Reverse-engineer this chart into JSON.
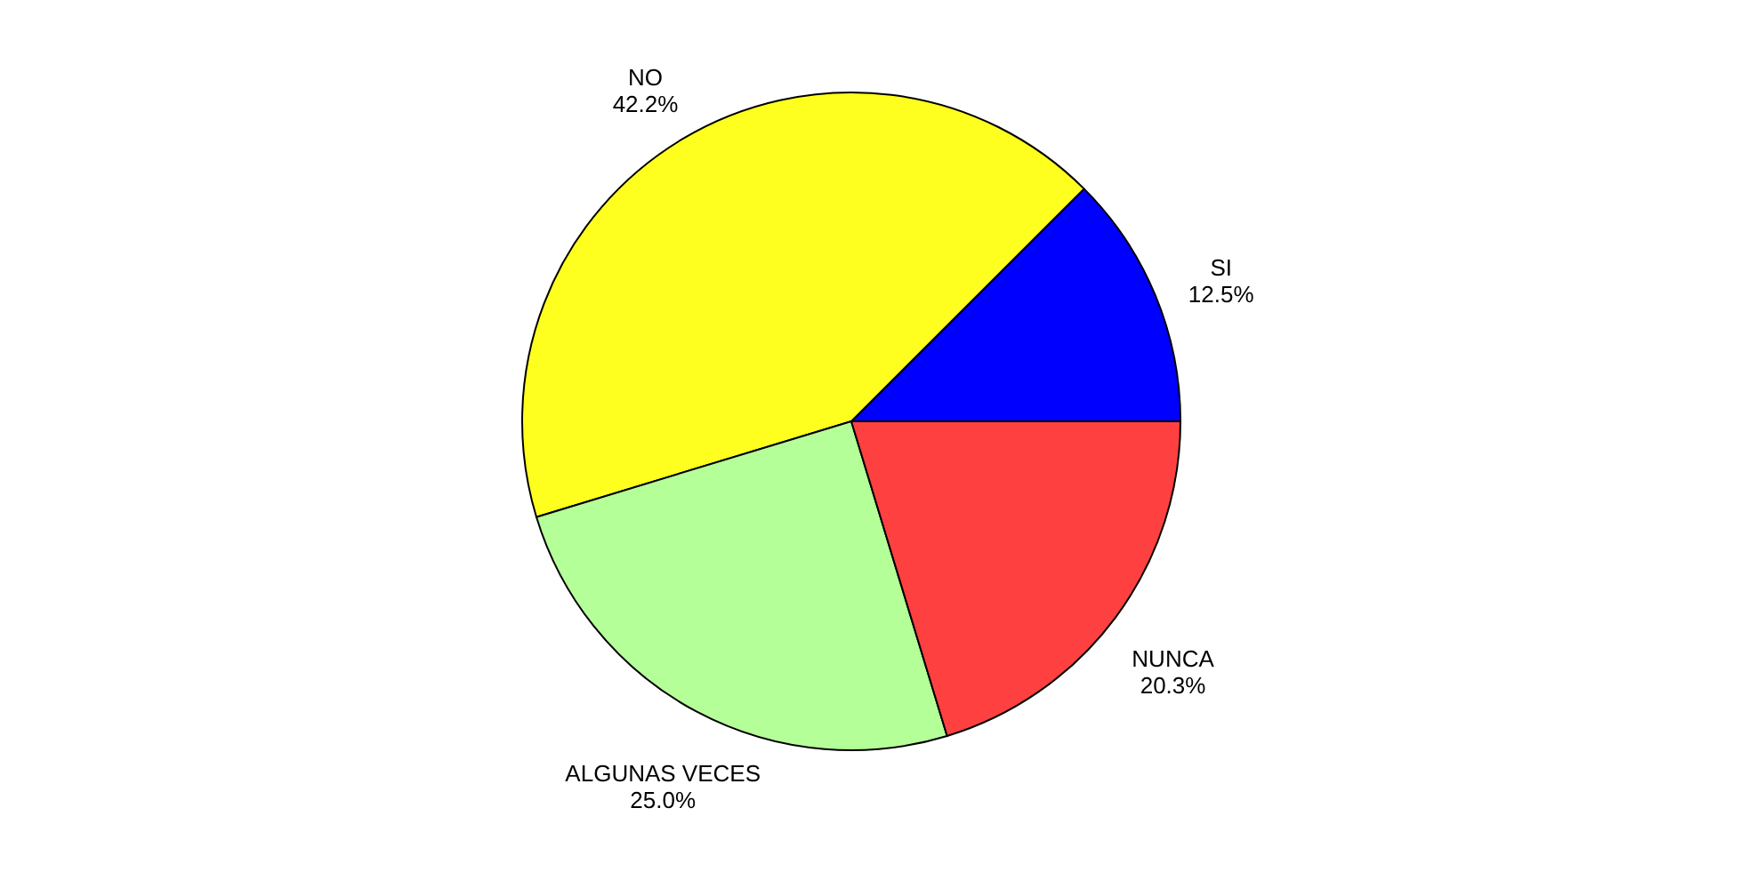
{
  "chart_data": {
    "type": "pie",
    "categories": [
      "SI",
      "NO",
      "ALGUNAS VECES",
      "NUNCA"
    ],
    "values": [
      12.5,
      42.2,
      25.0,
      20.3
    ],
    "colors": [
      "#0000ff",
      "#ffff1f",
      "#b5ff99",
      "#ff4040"
    ],
    "value_labels": [
      "12.5%",
      "42.2%",
      "25.0%",
      "20.3%"
    ],
    "legend": false
  }
}
